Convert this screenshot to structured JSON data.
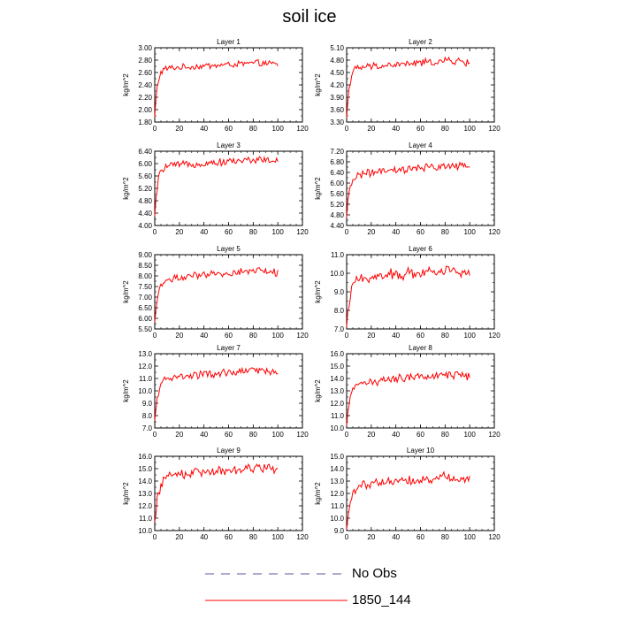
{
  "title": "soil ice",
  "legend": {
    "items": [
      {
        "label": "No Obs",
        "color": "#5a5aa0",
        "style": "dashed"
      },
      {
        "label": "1850_144",
        "color": "#ff0000",
        "style": "solid"
      }
    ]
  },
  "chart_data": [
    {
      "type": "line",
      "title": "Layer 1",
      "xlabel": "",
      "ylabel": "kg/m^2",
      "xlim": [
        0,
        120
      ],
      "ylim": [
        1.8,
        3.0
      ],
      "xticks": [
        "0",
        "20",
        "40",
        "60",
        "80",
        "100",
        "120"
      ],
      "yticks": [
        "1.80",
        "2.00",
        "2.20",
        "2.40",
        "2.60",
        "2.80",
        "3.00"
      ],
      "series": [
        {
          "name": "1850_144",
          "color": "#ff0000",
          "start": 1.88,
          "plateau": 2.66,
          "rise": 2.1,
          "trend": 0.0011,
          "noise": 0.045
        }
      ]
    },
    {
      "type": "line",
      "title": "Layer 2",
      "xlabel": "",
      "ylabel": "kg/m^2",
      "xlim": [
        0,
        120
      ],
      "ylim": [
        3.3,
        5.1
      ],
      "xticks": [
        "0",
        "20",
        "40",
        "60",
        "80",
        "100",
        "120"
      ],
      "yticks": [
        "3.30",
        "3.60",
        "3.90",
        "4.20",
        "4.50",
        "4.80",
        "5.10"
      ],
      "series": [
        {
          "name": "1850_144",
          "color": "#ff0000",
          "start": 3.4,
          "plateau": 4.6,
          "rise": 2.2,
          "trend": 0.0022,
          "noise": 0.08
        }
      ]
    },
    {
      "type": "line",
      "title": "Layer 3",
      "xlabel": "",
      "ylabel": "kg/m^2",
      "xlim": [
        0,
        120
      ],
      "ylim": [
        4.0,
        6.4
      ],
      "xticks": [
        "0",
        "20",
        "40",
        "60",
        "80",
        "100",
        "120"
      ],
      "yticks": [
        "4.00",
        "4.40",
        "4.80",
        "5.20",
        "5.60",
        "6.00",
        "6.40"
      ],
      "series": [
        {
          "name": "1850_144",
          "color": "#ff0000",
          "start": 4.3,
          "plateau": 5.9,
          "rise": 2.3,
          "trend": 0.0028,
          "noise": 0.1
        }
      ]
    },
    {
      "type": "line",
      "title": "Layer 4",
      "xlabel": "",
      "ylabel": "kg/m^2",
      "xlim": [
        0,
        120
      ],
      "ylim": [
        4.4,
        7.2
      ],
      "xticks": [
        "0",
        "20",
        "40",
        "60",
        "80",
        "100",
        "120"
      ],
      "yticks": [
        "4.40",
        "4.80",
        "5.20",
        "5.60",
        "6.00",
        "6.40",
        "6.80",
        "7.20"
      ],
      "series": [
        {
          "name": "1850_144",
          "color": "#ff0000",
          "start": 4.7,
          "plateau": 6.3,
          "rise": 2.5,
          "trend": 0.0042,
          "noise": 0.13
        }
      ]
    },
    {
      "type": "line",
      "title": "Layer 5",
      "xlabel": "",
      "ylabel": "kg/m^2",
      "xlim": [
        0,
        120
      ],
      "ylim": [
        5.5,
        9.0
      ],
      "xticks": [
        "0",
        "20",
        "40",
        "60",
        "80",
        "100",
        "120"
      ],
      "yticks": [
        "5.50",
        "6.00",
        "6.50",
        "7.00",
        "7.50",
        "8.00",
        "8.50",
        "9.00"
      ],
      "series": [
        {
          "name": "1850_144",
          "color": "#ff0000",
          "start": 5.8,
          "plateau": 7.8,
          "rise": 2.6,
          "trend": 0.0055,
          "noise": 0.16
        }
      ]
    },
    {
      "type": "line",
      "title": "Layer 6",
      "xlabel": "",
      "ylabel": "kg/m^2",
      "xlim": [
        0,
        120
      ],
      "ylim": [
        7.0,
        11.0
      ],
      "xticks": [
        "0",
        "20",
        "40",
        "60",
        "80",
        "100",
        "120"
      ],
      "yticks": [
        "7.0",
        "8.0",
        "9.0",
        "10.0",
        "11.0"
      ],
      "series": [
        {
          "name": "1850_144",
          "color": "#ff0000",
          "start": 7.1,
          "plateau": 9.7,
          "rise": 3.0,
          "trend": 0.0058,
          "noise": 0.28
        }
      ]
    },
    {
      "type": "line",
      "title": "Layer 7",
      "xlabel": "",
      "ylabel": "kg/m^2",
      "xlim": [
        0,
        120
      ],
      "ylim": [
        7.0,
        13.0
      ],
      "xticks": [
        "0",
        "20",
        "40",
        "60",
        "80",
        "100",
        "120"
      ],
      "yticks": [
        "7.0",
        "8.0",
        "9.0",
        "10.0",
        "11.0",
        "12.0",
        "13.0"
      ],
      "series": [
        {
          "name": "1850_144",
          "color": "#ff0000",
          "start": 7.6,
          "plateau": 11.0,
          "rise": 2.8,
          "trend": 0.0075,
          "noise": 0.28
        }
      ]
    },
    {
      "type": "line",
      "title": "Layer 8",
      "xlabel": "",
      "ylabel": "kg/m^2",
      "xlim": [
        0,
        120
      ],
      "ylim": [
        10.0,
        16.0
      ],
      "xticks": [
        "0",
        "20",
        "40",
        "60",
        "80",
        "100",
        "120"
      ],
      "yticks": [
        "10.0",
        "11.0",
        "12.0",
        "13.0",
        "14.0",
        "15.0",
        "16.0"
      ],
      "series": [
        {
          "name": "1850_144",
          "color": "#ff0000",
          "start": 10.2,
          "plateau": 13.6,
          "rise": 3.0,
          "trend": 0.0085,
          "noise": 0.32
        }
      ]
    },
    {
      "type": "line",
      "title": "Layer 9",
      "xlabel": "",
      "ylabel": "kg/m^2",
      "xlim": [
        0,
        120
      ],
      "ylim": [
        10.0,
        16.0
      ],
      "xticks": [
        "0",
        "20",
        "40",
        "60",
        "80",
        "100",
        "120"
      ],
      "yticks": [
        "10.0",
        "11.0",
        "12.0",
        "13.0",
        "14.0",
        "15.0",
        "16.0"
      ],
      "series": [
        {
          "name": "1850_144",
          "color": "#ff0000",
          "start": 10.7,
          "plateau": 14.4,
          "rise": 3.2,
          "trend": 0.0085,
          "noise": 0.35
        }
      ]
    },
    {
      "type": "line",
      "title": "Layer 10",
      "xlabel": "",
      "ylabel": "kg/m^2",
      "xlim": [
        0,
        120
      ],
      "ylim": [
        9.0,
        15.0
      ],
      "xticks": [
        "0",
        "20",
        "40",
        "60",
        "80",
        "100",
        "120"
      ],
      "yticks": [
        "9.0",
        "10.0",
        "11.0",
        "12.0",
        "13.0",
        "14.0",
        "15.0"
      ],
      "series": [
        {
          "name": "1850_144",
          "color": "#ff0000",
          "start": 9.1,
          "plateau": 12.7,
          "rise": 3.5,
          "trend": 0.0075,
          "noise": 0.35
        }
      ]
    }
  ]
}
